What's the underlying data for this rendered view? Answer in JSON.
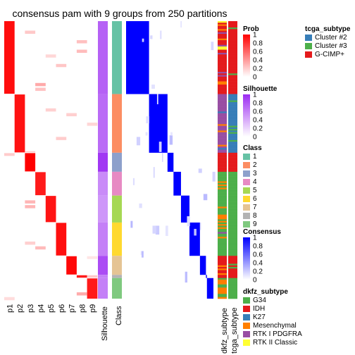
{
  "chart_data": {
    "type": "heatmap",
    "title": "consensus pam with 9 groups from 250 partitions",
    "row_columns": [
      "p1",
      "p2",
      "p3",
      "p4",
      "p5",
      "p6",
      "p7",
      "p8",
      "p9"
    ],
    "bar_labels": {
      "silhouette": "Silhouette",
      "class": "Class",
      "dkfz": "dkfz_subtype",
      "tcga": "tcga_subtype"
    },
    "class_groups": [
      {
        "class": "1",
        "rows": 46
      },
      {
        "class": "2",
        "rows": 37
      },
      {
        "class": "3",
        "rows": 12
      },
      {
        "class": "4",
        "rows": 15
      },
      {
        "class": "5",
        "rows": 17
      },
      {
        "class": "6",
        "rows": 21
      },
      {
        "class": "7",
        "rows": 12
      },
      {
        "class": "8",
        "rows": 2
      },
      {
        "class": "9",
        "rows": 13
      }
    ],
    "group_probability_mean": [
      0.95,
      0.93,
      1.0,
      0.9,
      0.92,
      0.94,
      0.97,
      0.9,
      0.9
    ],
    "silhouette_mean": [
      0.75,
      0.7,
      0.95,
      0.55,
      0.5,
      0.6,
      0.85,
      0.6,
      0.6
    ],
    "legends": {
      "prob": {
        "title": "Prob",
        "ticks": [
          "1",
          "0.8",
          "0.6",
          "0.4",
          "0.2",
          "0"
        ],
        "colors": [
          "#ff0000",
          "#ffffff"
        ]
      },
      "silhouette": {
        "title": "Silhouette",
        "ticks": [
          "1",
          "0.8",
          "0.6",
          "0.4",
          "0.2",
          "0"
        ],
        "colors": [
          "#9c2cf2",
          "#ffffff"
        ]
      },
      "class": {
        "title": "Class",
        "items": [
          {
            "label": "1",
            "color": "#66c2a5"
          },
          {
            "label": "2",
            "color": "#fc8d62"
          },
          {
            "label": "3",
            "color": "#8da0cb"
          },
          {
            "label": "4",
            "color": "#e78ac3"
          },
          {
            "label": "5",
            "color": "#a6d854"
          },
          {
            "label": "6",
            "color": "#ffd92f"
          },
          {
            "label": "7",
            "color": "#e5c494"
          },
          {
            "label": "8",
            "color": "#b3b3b3"
          },
          {
            "label": "9",
            "color": "#7fc97f"
          }
        ]
      },
      "consensus": {
        "title": "Consensus",
        "ticks": [
          "1",
          "0.8",
          "0.6",
          "0.4",
          "0.2",
          "0"
        ],
        "colors": [
          "#0000ff",
          "#ffffff"
        ]
      },
      "tcga_subtype": {
        "title": "tcga_subtype",
        "items": [
          {
            "label": "Cluster #2",
            "color": "#377eb8"
          },
          {
            "label": "Cluster #3",
            "color": "#4daf4a"
          },
          {
            "label": "G-CIMP+",
            "color": "#e41a1c"
          }
        ]
      },
      "dkfz_subtype": {
        "title": "dkfz_subtype",
        "items": [
          {
            "label": "G34",
            "color": "#4daf4a"
          },
          {
            "label": "IDH",
            "color": "#e41a1c"
          },
          {
            "label": "K27",
            "color": "#377eb8"
          },
          {
            "label": "Mesenchymal",
            "color": "#ff7f00"
          },
          {
            "label": "RTK I PDGFRA",
            "color": "#984ea3"
          },
          {
            "label": "RTK II Classic",
            "color": "#ffff33"
          }
        ]
      }
    }
  }
}
